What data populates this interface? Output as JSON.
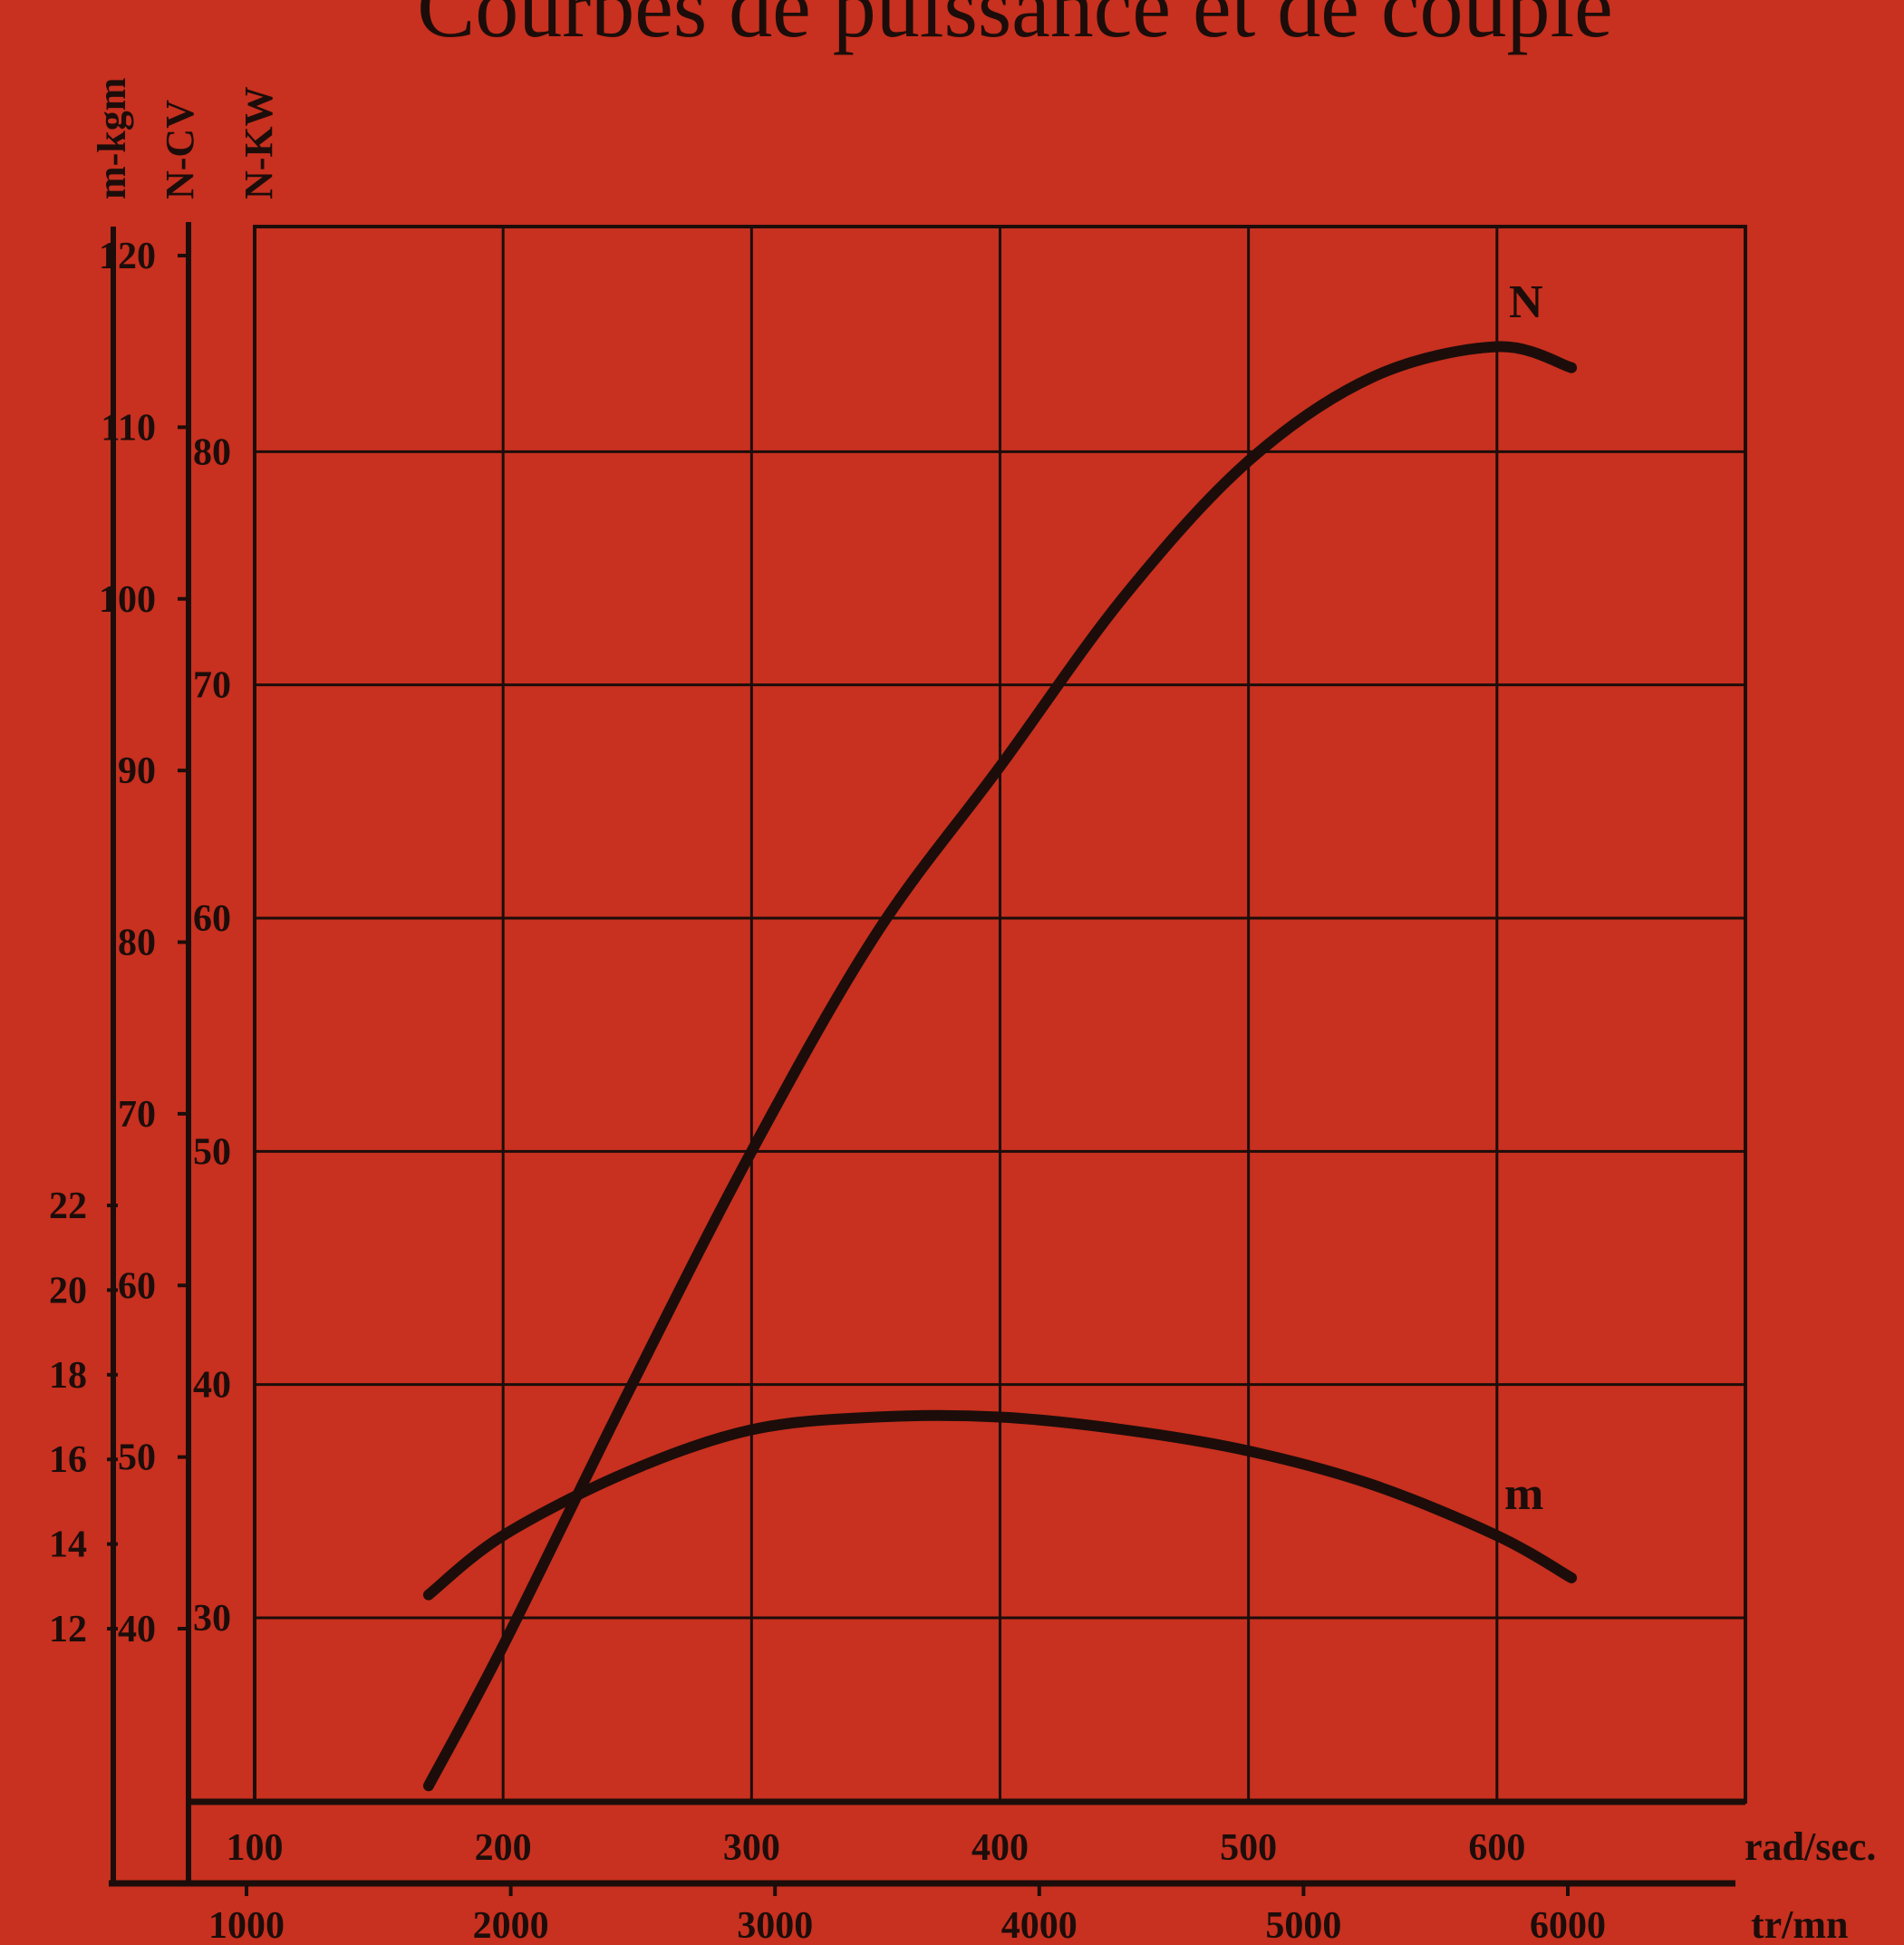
{
  "chart_data": {
    "type": "line",
    "title": "Courbes de puissance et de couple",
    "axes": {
      "y_left_units": [
        "m-kgm",
        "N-CV",
        "N-KW"
      ],
      "x_units": [
        "rad/sec.",
        "tr/mn"
      ],
      "kw_ticks": [
        "30",
        "40",
        "50",
        "60",
        "70",
        "80"
      ],
      "cv_ticks": [
        "40",
        "50",
        "60",
        "70",
        "80",
        "90",
        "100",
        "110",
        "120"
      ],
      "kgm_ticks": [
        "12",
        "14",
        "16",
        "18",
        "20",
        "22"
      ],
      "rad_ticks": [
        "100",
        "200",
        "300",
        "400",
        "500",
        "600"
      ],
      "rpm_ticks": [
        "1000",
        "2000",
        "3000",
        "4000",
        "5000",
        "6000"
      ]
    },
    "x_unit": "rad/sec.",
    "xlim": [
      100,
      700
    ],
    "ylim_kw": [
      30,
      90
    ],
    "series": [
      {
        "name": "N",
        "unit": "N-KW",
        "x": [
          170,
          200,
          250,
          300,
          350,
          400,
          450,
          500,
          550,
          600,
          630
        ],
        "y": [
          22.8,
          28.8,
          39.6,
          50.0,
          59.3,
          66.5,
          73.8,
          79.6,
          83.2,
          84.5,
          83.6
        ]
      },
      {
        "name": "m",
        "unit": "m-kgm",
        "x": [
          170,
          200,
          250,
          300,
          350,
          400,
          450,
          500,
          550,
          600,
          630
        ],
        "y": [
          12.8,
          14.2,
          15.7,
          16.7,
          17.0,
          17.0,
          16.7,
          16.2,
          15.4,
          14.2,
          13.2
        ]
      }
    ],
    "grid": true
  }
}
